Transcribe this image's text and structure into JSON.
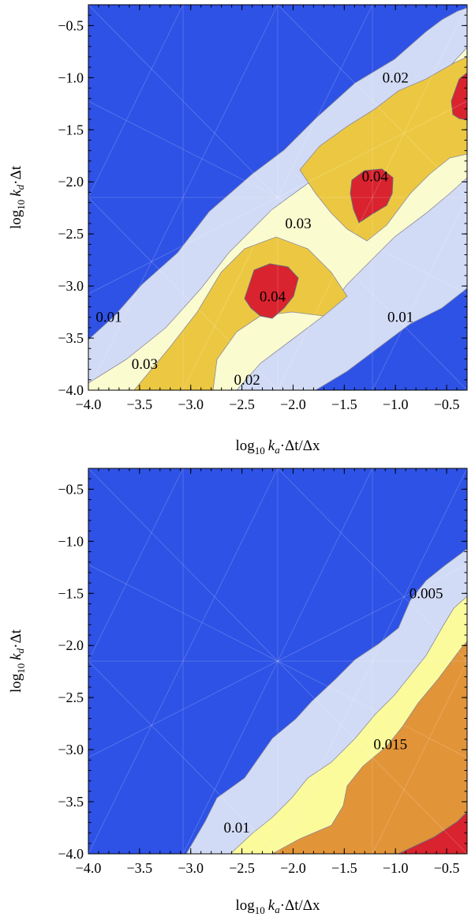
{
  "chart_data": [
    {
      "type": "contour",
      "xlabel": "log10 ka·Δt/Δx",
      "ylabel": "log10 kd·Δt",
      "xlim": [
        -4.0,
        -0.3
      ],
      "ylim": [
        -4.0,
        -0.3
      ],
      "x_ticks": [
        "−4.0",
        "−3.5",
        "−3.0",
        "−2.5",
        "−2.0",
        "−1.5",
        "−1.0",
        "−0.5"
      ],
      "y_ticks": [
        "−0.5",
        "−1.0",
        "−1.5",
        "−2.0",
        "−2.5",
        "−3.0",
        "−3.5",
        "−4.0"
      ],
      "contour_levels": [
        0.01,
        0.02,
        0.03,
        0.04
      ],
      "fill_colors": [
        "#2e52e6",
        "#d2dbf5",
        "#fbfbd0",
        "#ecc842",
        "#d9232e"
      ],
      "grid": "faint triangulation mesh",
      "regions": [
        {
          "band": "above 0.04",
          "x": [
            -2.55,
            -2.05
          ],
          "y": [
            -3.35,
            -2.8
          ]
        },
        {
          "band": "above 0.04",
          "x": [
            -1.35,
            -0.9
          ],
          "y": [
            -2.4,
            -1.85
          ]
        },
        {
          "band": "above 0.04",
          "x": [
            -0.6,
            -0.3
          ],
          "y": [
            -1.4,
            -0.85
          ]
        }
      ],
      "contour_labels": [
        {
          "text": "0.02",
          "x": -1.0,
          "y": -1.0
        },
        {
          "text": "0.04",
          "x": -1.2,
          "y": -1.95
        },
        {
          "text": "0.03",
          "x": -1.95,
          "y": -2.4
        },
        {
          "text": "0.04",
          "x": -2.2,
          "y": -3.1
        },
        {
          "text": "0.01",
          "x": -3.8,
          "y": -3.3
        },
        {
          "text": "0.01",
          "x": -0.95,
          "y": -3.3
        },
        {
          "text": "0.03",
          "x": -3.45,
          "y": -3.75
        },
        {
          "text": "0.02",
          "x": -2.45,
          "y": -3.9
        }
      ]
    },
    {
      "type": "contour",
      "xlabel": "log10 ka·Δt/Δx",
      "ylabel": "log10 kd·Δt",
      "xlim": [
        -4.0,
        -0.3
      ],
      "ylim": [
        -4.0,
        -0.3
      ],
      "x_ticks": [
        "−4.0",
        "−3.5",
        "−3.0",
        "−2.5",
        "−2.0",
        "−1.5",
        "−1.0",
        "−0.5"
      ],
      "y_ticks": [
        "−0.5",
        "−1.0",
        "−1.5",
        "−2.0",
        "−2.5",
        "−3.0",
        "−3.5",
        "−4.0"
      ],
      "contour_levels": [
        0.005,
        0.01,
        0.015,
        0.02
      ],
      "fill_colors": [
        "#2e52e6",
        "#d2dbf5",
        "#fbfb9c",
        "#e29438",
        "#d9232e"
      ],
      "grid": "faint triangulation mesh",
      "regions": [
        {
          "band": "above 0.02",
          "x": [
            -0.55,
            -0.3
          ],
          "y": [
            -4.0,
            -3.65
          ]
        }
      ],
      "contour_labels": [
        {
          "text": "0.005",
          "x": -0.7,
          "y": -1.5
        },
        {
          "text": "0.015",
          "x": -1.05,
          "y": -2.95
        },
        {
          "text": "0.01",
          "x": -2.55,
          "y": -3.75
        }
      ]
    }
  ],
  "axes": {
    "ylabel_parts": {
      "log": "log",
      "sub": "10",
      "var": "k",
      "var_sub": "d",
      "rest": "·Δt"
    },
    "xlabel_parts": {
      "log": "log",
      "sub": "10",
      "var": "k",
      "var_sub": "a",
      "rest": "·Δt/Δx"
    }
  }
}
